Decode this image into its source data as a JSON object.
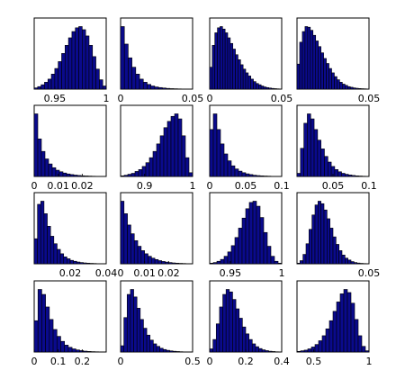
{
  "chart_data": [
    {
      "type": "bar",
      "xlim": [
        0.93,
        1.0
      ],
      "ticks": [
        {
          "v": 0.95,
          "label": "0.95"
        },
        {
          "v": 1.0,
          "label": "1"
        }
      ],
      "values": [
        0.02,
        0.04,
        0.07,
        0.11,
        0.16,
        0.24,
        0.33,
        0.44,
        0.57,
        0.7,
        0.82,
        0.92,
        0.98,
        1.0,
        0.95,
        0.85,
        0.7,
        0.52,
        0.32,
        0.15,
        0.05
      ]
    },
    {
      "type": "bar",
      "xlim": [
        0,
        0.05
      ],
      "ticks": [
        {
          "v": 0,
          "label": "0"
        },
        {
          "v": 0.05,
          "label": "0.05"
        }
      ],
      "values": [
        1.0,
        0.72,
        0.5,
        0.35,
        0.24,
        0.16,
        0.11,
        0.075,
        0.05,
        0.035,
        0.025,
        0.018,
        0.012,
        0.008,
        0.006,
        0.004,
        0.003,
        0.002,
        0.001
      ]
    },
    {
      "type": "bar",
      "xlim": [
        0,
        0.05
      ],
      "ticks": [
        {
          "v": 0,
          "label": "0"
        },
        {
          "v": 0.05,
          "label": "0.05"
        }
      ],
      "values": [
        0.35,
        0.7,
        0.9,
        0.98,
        1.0,
        0.96,
        0.9,
        0.82,
        0.73,
        0.64,
        0.55,
        0.47,
        0.39,
        0.32,
        0.26,
        0.21,
        0.16,
        0.12,
        0.09,
        0.07,
        0.05,
        0.035,
        0.025,
        0.018,
        0.012,
        0.008,
        0.005,
        0.003
      ]
    },
    {
      "type": "bar",
      "xlim": [
        0,
        0.05
      ],
      "ticks": [
        {
          "v": 0.05,
          "label": "0.05"
        }
      ],
      "values": [
        0.4,
        0.75,
        0.92,
        1.0,
        0.99,
        0.94,
        0.86,
        0.77,
        0.68,
        0.58,
        0.49,
        0.41,
        0.33,
        0.26,
        0.2,
        0.15,
        0.11,
        0.08,
        0.06,
        0.04,
        0.03,
        0.02,
        0.014,
        0.01,
        0.007,
        0.005,
        0.003
      ]
    },
    {
      "type": "bar",
      "xlim": [
        0,
        0.03
      ],
      "ticks": [
        {
          "v": 0,
          "label": "0"
        },
        {
          "v": 0.01,
          "label": "0.01"
        },
        {
          "v": 0.02,
          "label": "0.02"
        }
      ],
      "values": [
        1.0,
        0.6,
        0.4,
        0.28,
        0.2,
        0.14,
        0.1,
        0.075,
        0.055,
        0.04,
        0.03,
        0.022,
        0.016,
        0.011,
        0.008,
        0.006,
        0.004,
        0.003,
        0.002,
        0.001
      ]
    },
    {
      "type": "bar",
      "xlim": [
        0.85,
        1.0
      ],
      "ticks": [
        {
          "v": 0.9,
          "label": "0.9"
        },
        {
          "v": 1.0,
          "label": "1"
        }
      ],
      "values": [
        0.01,
        0.02,
        0.035,
        0.05,
        0.08,
        0.11,
        0.16,
        0.22,
        0.3,
        0.4,
        0.52,
        0.65,
        0.78,
        0.88,
        0.96,
        1.0,
        0.92,
        0.65,
        0.3,
        0.06
      ]
    },
    {
      "type": "bar",
      "xlim": [
        0,
        0.1
      ],
      "ticks": [
        {
          "v": 0,
          "label": "0"
        },
        {
          "v": 0.05,
          "label": "0.05"
        },
        {
          "v": 0.1,
          "label": "0.1"
        }
      ],
      "values": [
        0.75,
        1.0,
        0.75,
        0.52,
        0.36,
        0.25,
        0.17,
        0.12,
        0.085,
        0.06,
        0.042,
        0.03,
        0.02,
        0.014,
        0.01,
        0.007,
        0.005,
        0.003,
        0.002,
        0.001
      ]
    },
    {
      "type": "bar",
      "xlim": [
        0,
        0.1
      ],
      "ticks": [
        {
          "v": 0.05,
          "label": "0.05"
        },
        {
          "v": 0.1,
          "label": "0.1"
        }
      ],
      "values": [
        0.05,
        0.45,
        0.85,
        1.0,
        0.92,
        0.75,
        0.58,
        0.44,
        0.32,
        0.23,
        0.16,
        0.11,
        0.075,
        0.05,
        0.035,
        0.024,
        0.016,
        0.01,
        0.007,
        0.004,
        0.002
      ]
    },
    {
      "type": "bar",
      "xlim": [
        0,
        0.04
      ],
      "ticks": [
        {
          "v": 0.02,
          "label": "0.02"
        },
        {
          "v": 0.04,
          "label": "0.04"
        }
      ],
      "values": [
        0.4,
        0.95,
        1.0,
        0.8,
        0.6,
        0.44,
        0.32,
        0.23,
        0.16,
        0.11,
        0.08,
        0.055,
        0.04,
        0.028,
        0.02,
        0.014,
        0.01,
        0.007,
        0.005,
        0.003,
        0.002,
        0.001
      ]
    },
    {
      "type": "bar",
      "xlim": [
        0,
        0.03
      ],
      "ticks": [
        {
          "v": 0,
          "label": "0"
        },
        {
          "v": 0.01,
          "label": "0.01"
        },
        {
          "v": 0.02,
          "label": "0.02"
        }
      ],
      "values": [
        1.0,
        0.8,
        0.62,
        0.48,
        0.37,
        0.28,
        0.21,
        0.16,
        0.12,
        0.09,
        0.068,
        0.05,
        0.037,
        0.027,
        0.02,
        0.014,
        0.01,
        0.007,
        0.005,
        0.003,
        0.002
      ]
    },
    {
      "type": "bar",
      "xlim": [
        0.93,
        1.0
      ],
      "ticks": [
        {
          "v": 0.95,
          "label": "0.95"
        },
        {
          "v": 1.0,
          "label": "1"
        }
      ],
      "values": [
        0.01,
        0.02,
        0.04,
        0.07,
        0.12,
        0.19,
        0.29,
        0.42,
        0.57,
        0.73,
        0.88,
        0.98,
        1.0,
        0.92,
        0.74,
        0.5,
        0.28,
        0.12,
        0.04,
        0.01
      ]
    },
    {
      "type": "bar",
      "xlim": [
        0,
        0.05
      ],
      "ticks": [
        {
          "v": 0.05,
          "label": "0.05"
        }
      ],
      "values": [
        0.01,
        0.05,
        0.15,
        0.32,
        0.55,
        0.78,
        0.94,
        1.0,
        0.96,
        0.86,
        0.72,
        0.57,
        0.43,
        0.31,
        0.21,
        0.14,
        0.09,
        0.06,
        0.035,
        0.02,
        0.012,
        0.007,
        0.004,
        0.002
      ]
    },
    {
      "type": "bar",
      "xlim": [
        0,
        0.3
      ],
      "ticks": [
        {
          "v": 0,
          "label": "0"
        },
        {
          "v": 0.1,
          "label": "0.1"
        },
        {
          "v": 0.2,
          "label": "0.2"
        }
      ],
      "values": [
        0.5,
        1.0,
        0.92,
        0.72,
        0.52,
        0.36,
        0.25,
        0.17,
        0.11,
        0.075,
        0.05,
        0.033,
        0.022,
        0.014,
        0.009,
        0.006,
        0.004,
        0.002,
        0.001
      ]
    },
    {
      "type": "bar",
      "xlim": [
        0,
        0.5
      ],
      "ticks": [
        {
          "v": 0,
          "label": "0"
        },
        {
          "v": 0.5,
          "label": "0.5"
        }
      ],
      "values": [
        0.1,
        0.55,
        0.92,
        1.0,
        0.88,
        0.7,
        0.52,
        0.38,
        0.27,
        0.19,
        0.13,
        0.09,
        0.06,
        0.04,
        0.027,
        0.018,
        0.012,
        0.008,
        0.005,
        0.003,
        0.002,
        0.001
      ]
    },
    {
      "type": "bar",
      "xlim": [
        0,
        0.4
      ],
      "ticks": [
        {
          "v": 0,
          "label": "0"
        },
        {
          "v": 0.2,
          "label": "0.2"
        },
        {
          "v": 0.4,
          "label": "0.4"
        }
      ],
      "values": [
        0.05,
        0.2,
        0.45,
        0.72,
        0.92,
        1.0,
        0.96,
        0.84,
        0.69,
        0.54,
        0.4,
        0.29,
        0.2,
        0.13,
        0.085,
        0.055,
        0.035,
        0.022,
        0.013,
        0.008,
        0.004,
        0.002
      ]
    },
    {
      "type": "bar",
      "xlim": [
        0.35,
        1.0
      ],
      "ticks": [
        {
          "v": 0.5,
          "label": "0.5"
        },
        {
          "v": 1.0,
          "label": "1"
        }
      ],
      "values": [
        0.01,
        0.02,
        0.03,
        0.05,
        0.08,
        0.12,
        0.18,
        0.26,
        0.37,
        0.5,
        0.65,
        0.8,
        0.93,
        1.0,
        0.95,
        0.78,
        0.52,
        0.26,
        0.09,
        0.02
      ]
    }
  ]
}
